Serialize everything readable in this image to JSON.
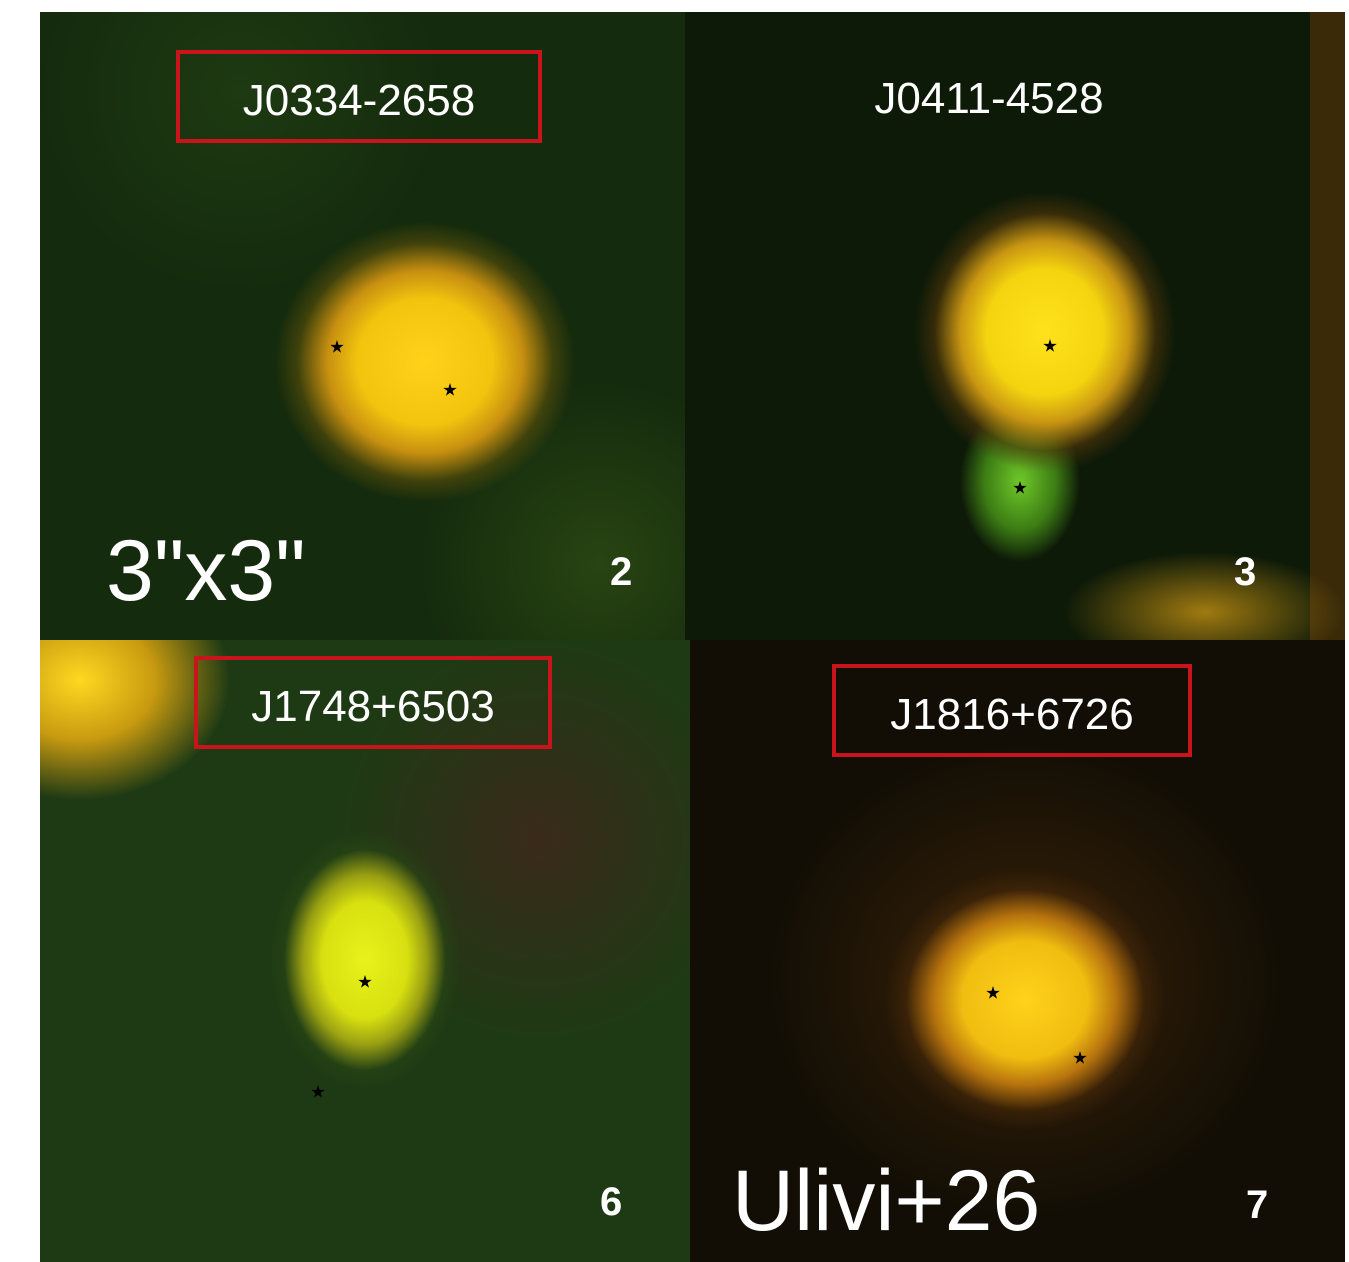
{
  "panels": [
    {
      "label": "J0334-2658",
      "number": 2,
      "boxed": true
    },
    {
      "label": "J0411-4528",
      "number": 3,
      "boxed": false
    },
    {
      "label": "J1748+6503",
      "number": 6,
      "boxed": true
    },
    {
      "label": "J1816+6726",
      "number": 7,
      "boxed": true
    }
  ],
  "scale_label": "3\"x3\"",
  "credit": "Ulivi+26"
}
